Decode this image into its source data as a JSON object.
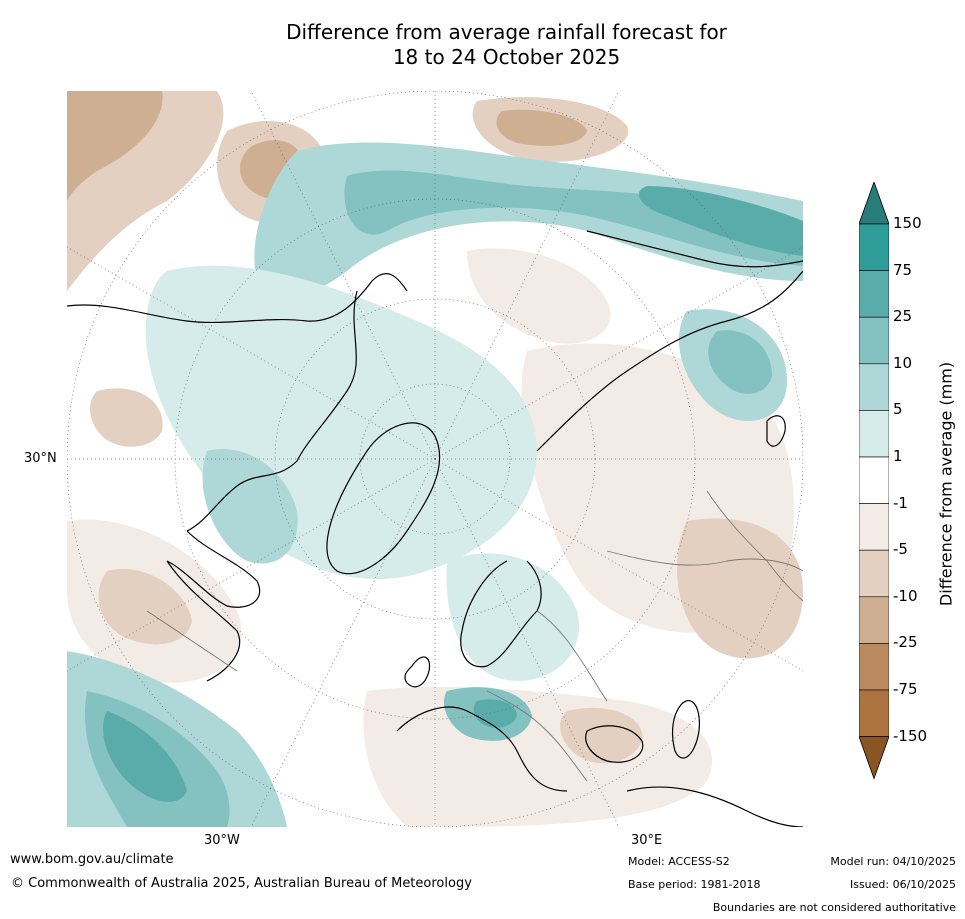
{
  "title": {
    "line1": "Difference from average rainfall forecast for",
    "line2": "18 to 24 October 2025"
  },
  "map": {
    "projection": "north polar stereographic",
    "lat_labels": [
      "30°N"
    ],
    "lon_labels": [
      "30°W",
      "30°E"
    ]
  },
  "colorbar": {
    "label": "Difference from average (mm)",
    "ticks": [
      "150",
      "75",
      "25",
      "10",
      "5",
      "1",
      "-1",
      "-5",
      "-10",
      "-25",
      "-75",
      "-150"
    ],
    "bins": [
      {
        "range": "above 150",
        "color": "#287d7b"
      },
      {
        "range": "75 to 150",
        "color": "#2e9c99"
      },
      {
        "range": "25 to 75",
        "color": "#5aacab"
      },
      {
        "range": "10 to 25",
        "color": "#83c2c1"
      },
      {
        "range": "5 to 10",
        "color": "#add8d7"
      },
      {
        "range": "1 to 5",
        "color": "#d6ecea"
      },
      {
        "range": "-1 to 1",
        "color": "#ffffff"
      },
      {
        "range": "-5 to -1",
        "color": "#f3ece6"
      },
      {
        "range": "-10 to -5",
        "color": "#e3d0c1"
      },
      {
        "range": "-25 to -10",
        "color": "#cfaf91"
      },
      {
        "range": "-75 to -25",
        "color": "#bb8a5f"
      },
      {
        "range": "-150 to -75",
        "color": "#ab733f"
      },
      {
        "range": "below -150",
        "color": "#8a5523"
      }
    ]
  },
  "footer": {
    "website": "www.bom.gov.au/climate",
    "copyright": "© Commonwealth of Australia 2025, Australian Bureau of Meteorology",
    "model": "Model: ACCESS-S2",
    "base_period": "Base period: 1981-2018",
    "model_run": "Model run: 04/10/2025",
    "issued": "Issued: 06/10/2025",
    "disclaimer": "Boundaries are not considered authoritative"
  }
}
